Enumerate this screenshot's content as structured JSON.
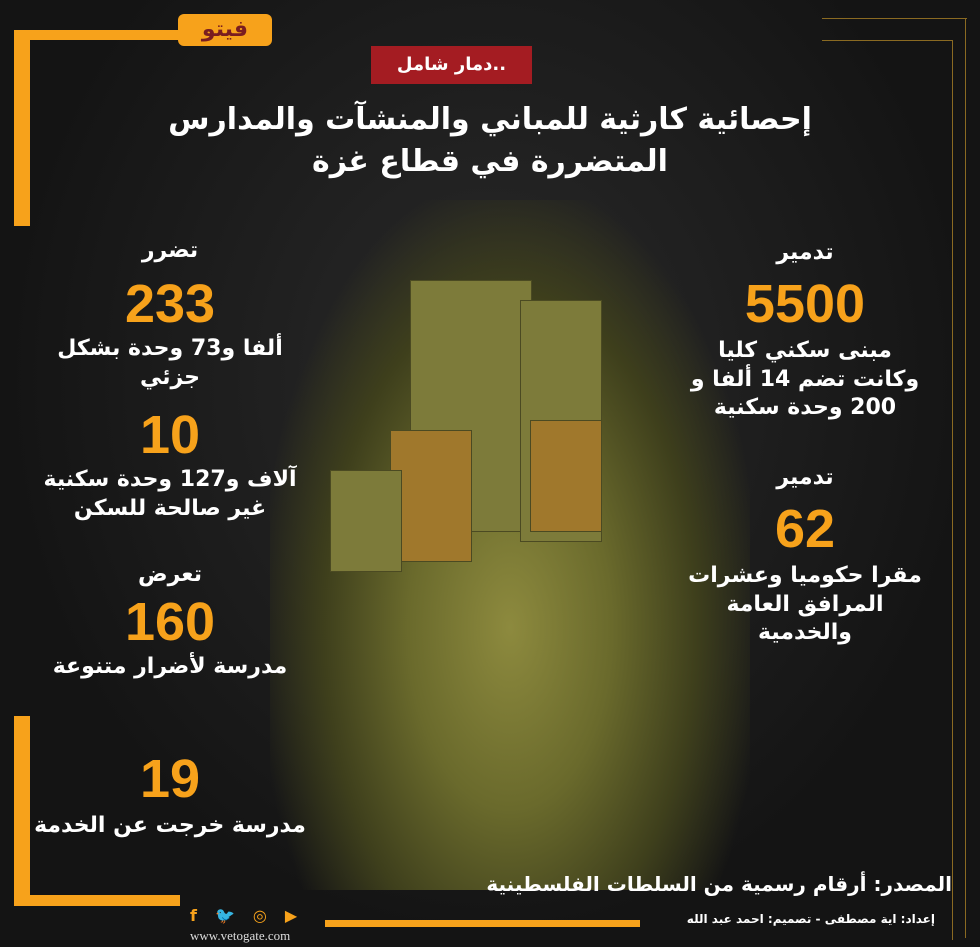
{
  "logo": "فيتو",
  "tag": "دمار شامل..",
  "title": {
    "line1": "إحصائية كارثية للمباني والمنشآت والمدارس",
    "line2": "المتضررة في قطاع غزة"
  },
  "right": [
    {
      "label": "تدمير",
      "number": "5500",
      "desc": [
        "مبنى سكني كليا",
        "وكانت تضم 14 ألفا و",
        "200 وحدة سكنية"
      ]
    },
    {
      "label": "تدمير",
      "number": "62",
      "desc": [
        "مقرا حكوميا وعشرات",
        "المرافق العامة",
        "والخدمية"
      ]
    }
  ],
  "left": [
    {
      "label": "تضرر",
      "number": "233",
      "desc": [
        "ألفا و73 وحدة بشكل جزئي"
      ]
    },
    {
      "label": "",
      "number": "10",
      "desc": [
        "آلاف و127 وحدة سكنية",
        "غير صالحة للسكن"
      ]
    },
    {
      "label": "تعرض",
      "number": "160",
      "desc": [
        "مدرسة لأضرار متنوعة"
      ]
    },
    {
      "label": "",
      "number": "19",
      "desc": [
        "مدرسة خرجت عن الخدمة"
      ]
    }
  ],
  "source": "المصدر: أرقام رسمية من السلطات الفلسطينية",
  "credits": "إعداد: اية مصطفى  - تصميم: احمد عبد الله",
  "social": {
    "icons": [
      "facebook-icon",
      "twitter-icon",
      "instagram-icon",
      "youtube-icon"
    ],
    "glyphs": [
      "f",
      "🐦",
      "◎",
      "▶"
    ]
  },
  "url": "www.vetogate.com",
  "colors": {
    "accent": "#f7a21b",
    "tag": "#a41c22",
    "background": "#151515"
  }
}
